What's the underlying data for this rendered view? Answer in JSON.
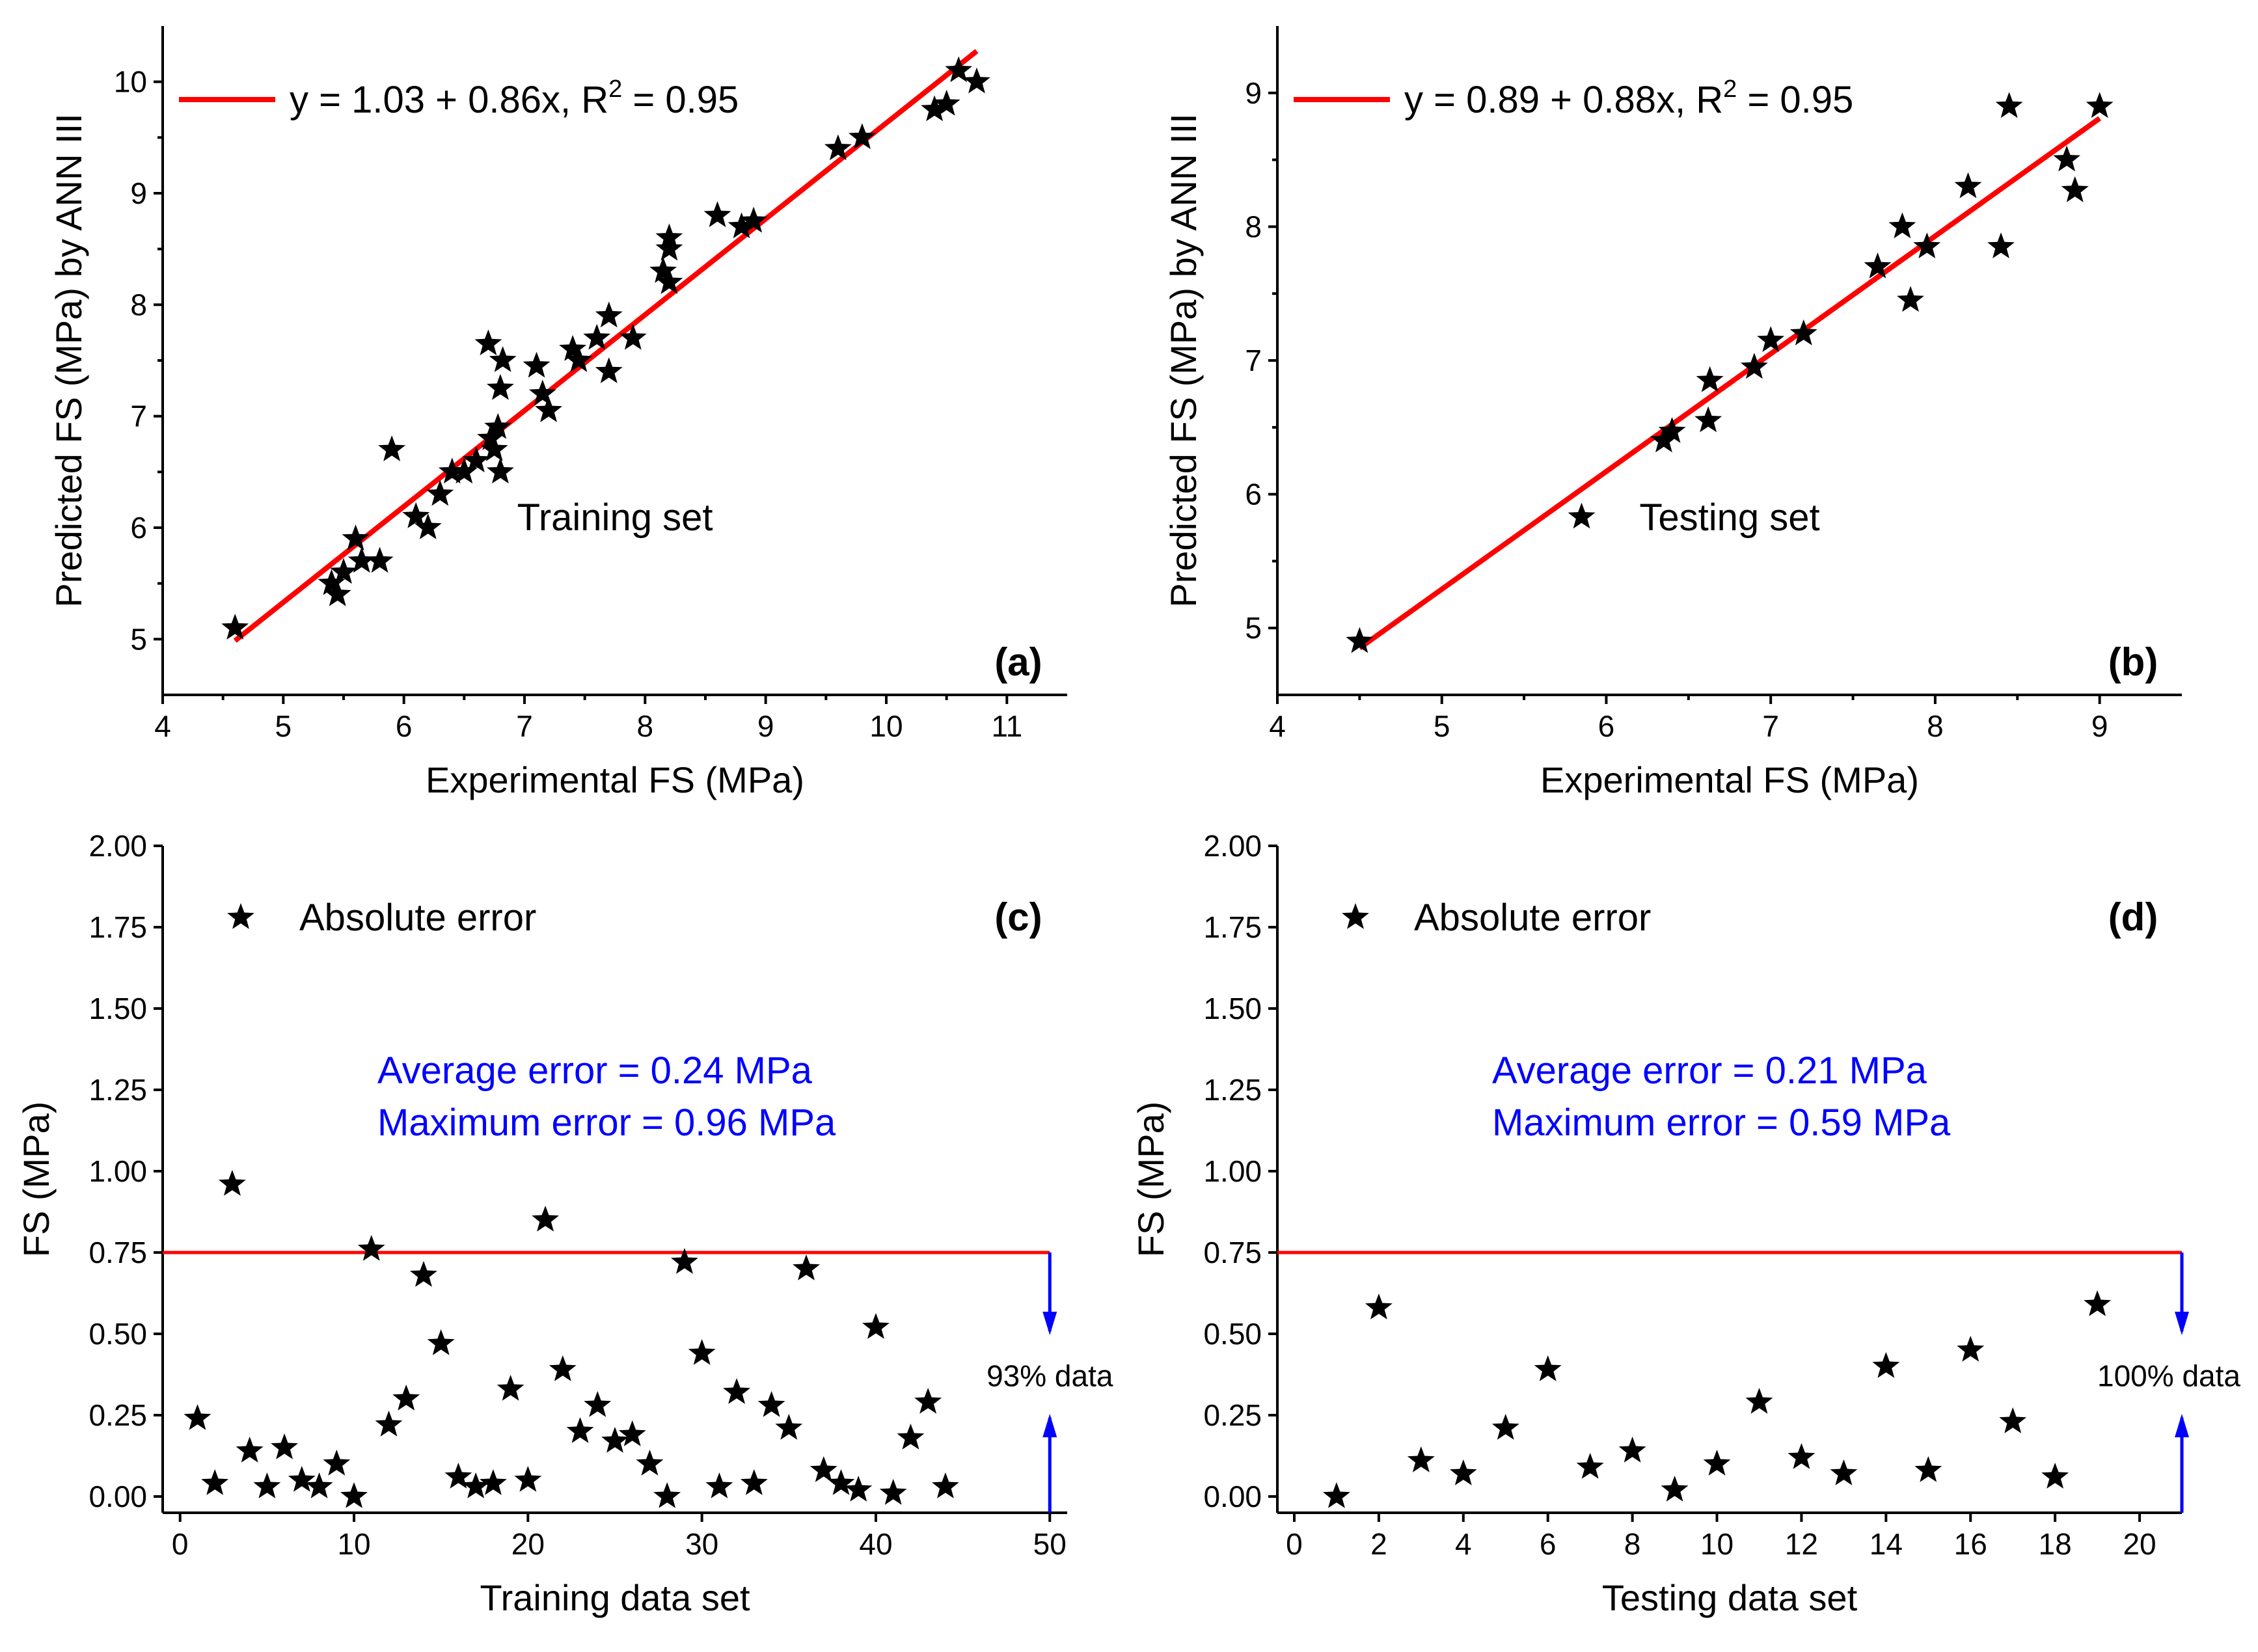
{
  "chart_data": [
    {
      "type": "scatter",
      "panel": "(a)",
      "set_label": "Training set",
      "xlabel": "Experimental FS (MPa)",
      "ylabel": "Predicted FS (MPa) by ANN III",
      "xlim": [
        4,
        11.5
      ],
      "ylim": [
        4.5,
        10.5
      ],
      "xticks": [
        "4",
        "5",
        "6",
        "7",
        "8",
        "9",
        "10",
        "11"
      ],
      "yticks": [
        "5",
        "6",
        "7",
        "8",
        "9",
        "10"
      ],
      "fit": {
        "label": "y = 1.03 + 0.86x, R",
        "sup": "2",
        "r2_text": " = 0.95",
        "intercept": 1.03,
        "slope": 0.86,
        "x_range": [
          4.6,
          10.75
        ]
      },
      "x": [
        4.6,
        5.4,
        5.45,
        5.5,
        5.6,
        5.65,
        5.8,
        5.9,
        6.1,
        6.2,
        6.3,
        6.4,
        6.5,
        6.6,
        6.7,
        6.72,
        6.75,
        6.78,
        6.8,
        6.8,
        6.82,
        7.1,
        7.15,
        7.2,
        7.4,
        7.45,
        7.6,
        7.7,
        7.7,
        7.9,
        8.15,
        8.2,
        8.2,
        8.2,
        8.6,
        8.8,
        8.9,
        9.6,
        9.8,
        10.4,
        10.5,
        10.6,
        10.75
      ],
      "y": [
        5.1,
        5.5,
        5.4,
        5.6,
        5.9,
        5.7,
        5.7,
        6.7,
        6.1,
        6.0,
        6.3,
        6.5,
        6.5,
        6.6,
        7.65,
        6.8,
        6.7,
        6.9,
        6.5,
        7.25,
        7.5,
        7.45,
        7.2,
        7.05,
        7.6,
        7.5,
        7.7,
        7.9,
        7.4,
        7.7,
        8.3,
        8.6,
        8.5,
        8.2,
        8.8,
        8.7,
        8.75,
        9.4,
        9.5,
        9.75,
        9.8,
        10.1,
        10.0
      ]
    },
    {
      "type": "scatter",
      "panel": "(b)",
      "set_label": "Testing set",
      "xlabel": "Experimental FS (MPa)",
      "ylabel": "Predicted FS (MPa) by ANN III",
      "xlim": [
        4,
        9.5
      ],
      "ylim": [
        4.5,
        9.5
      ],
      "xticks": [
        "4",
        "5",
        "6",
        "7",
        "8",
        "9"
      ],
      "yticks": [
        "5",
        "6",
        "7",
        "8",
        "9"
      ],
      "fit": {
        "label": "y = 0.89 + 0.88x, R",
        "sup": "2",
        "r2_text": " = 0.95",
        "intercept": 0.89,
        "slope": 0.88,
        "x_range": [
          4.5,
          9.0
        ]
      },
      "x": [
        4.5,
        5.85,
        6.35,
        6.4,
        6.62,
        6.63,
        6.9,
        7.0,
        7.2,
        7.65,
        7.8,
        7.85,
        7.95,
        8.2,
        8.4,
        8.45,
        8.8,
        8.85,
        9.0
      ],
      "y": [
        4.9,
        5.83,
        6.4,
        6.47,
        6.55,
        6.85,
        6.95,
        7.15,
        7.2,
        7.7,
        8.0,
        7.45,
        7.85,
        8.3,
        7.85,
        8.9,
        8.5,
        8.27,
        8.9
      ]
    },
    {
      "type": "scatter",
      "panel": "(c)",
      "legend": "Absolute error",
      "xlabel": "Training data set",
      "ylabel": "FS (MPa)",
      "xlim": [
        -1,
        51
      ],
      "ylim": [
        -0.05,
        2.0
      ],
      "xticks": [
        "0",
        "10",
        "20",
        "30",
        "40",
        "50"
      ],
      "yticks": [
        "0.00",
        "0.25",
        "0.50",
        "0.75",
        "1.00",
        "1.25",
        "1.50",
        "1.75",
        "2.00"
      ],
      "avg_text": "Average error = 0.24 MPa",
      "max_text": "Maximum error = 0.96 MPa",
      "threshold": 0.75,
      "threshold_x": 50,
      "pct_text": "93% data",
      "x": [
        1,
        2,
        3,
        4,
        5,
        6,
        7,
        8,
        9,
        10,
        11,
        12,
        13,
        14,
        15,
        16,
        17,
        18,
        19,
        20,
        21,
        22,
        23,
        24,
        25,
        26,
        27,
        28,
        29,
        30,
        31,
        32,
        33,
        34,
        35,
        36,
        37,
        38,
        39,
        40,
        41,
        42,
        43,
        44
      ],
      "y": [
        0.24,
        0.04,
        0.96,
        0.14,
        0.03,
        0.15,
        0.05,
        0.03,
        0.1,
        0.0,
        0.76,
        0.22,
        0.3,
        0.68,
        0.47,
        0.06,
        0.03,
        0.04,
        0.33,
        0.05,
        0.85,
        0.39,
        0.2,
        0.28,
        0.17,
        0.19,
        0.1,
        0.0,
        0.72,
        0.44,
        0.03,
        0.32,
        0.04,
        0.28,
        0.21,
        0.7,
        0.08,
        0.04,
        0.02,
        0.52,
        0.01,
        0.18,
        0.29,
        0.03
      ]
    },
    {
      "type": "scatter",
      "panel": "(d)",
      "legend": "Absolute error",
      "xlabel": "Testing data set",
      "ylabel": "FS (MPa)",
      "xlim": [
        -0.4,
        21
      ],
      "ylim": [
        -0.05,
        2.0
      ],
      "xticks": [
        "0",
        "2",
        "4",
        "6",
        "8",
        "10",
        "12",
        "14",
        "16",
        "18",
        "20"
      ],
      "yticks": [
        "0.00",
        "0.25",
        "0.50",
        "0.75",
        "1.00",
        "1.25",
        "1.50",
        "1.75",
        "2.00"
      ],
      "avg_text": "Average error = 0.21 MPa",
      "max_text": "Maximum error = 0.59 MPa",
      "threshold": 0.75,
      "threshold_x": 21,
      "pct_text": "100% data",
      "x": [
        1,
        2,
        3,
        4,
        5,
        6,
        7,
        8,
        9,
        10,
        11,
        12,
        13,
        14,
        15,
        16,
        17,
        18,
        19
      ],
      "y": [
        0.0,
        0.58,
        0.11,
        0.07,
        0.21,
        0.39,
        0.09,
        0.14,
        0.02,
        0.1,
        0.29,
        0.12,
        0.07,
        0.4,
        0.08,
        0.45,
        0.23,
        0.06,
        0.59
      ]
    }
  ],
  "colors": {
    "fit": "#ff0000",
    "annotation": "#0000ff",
    "marker": "#000000"
  }
}
